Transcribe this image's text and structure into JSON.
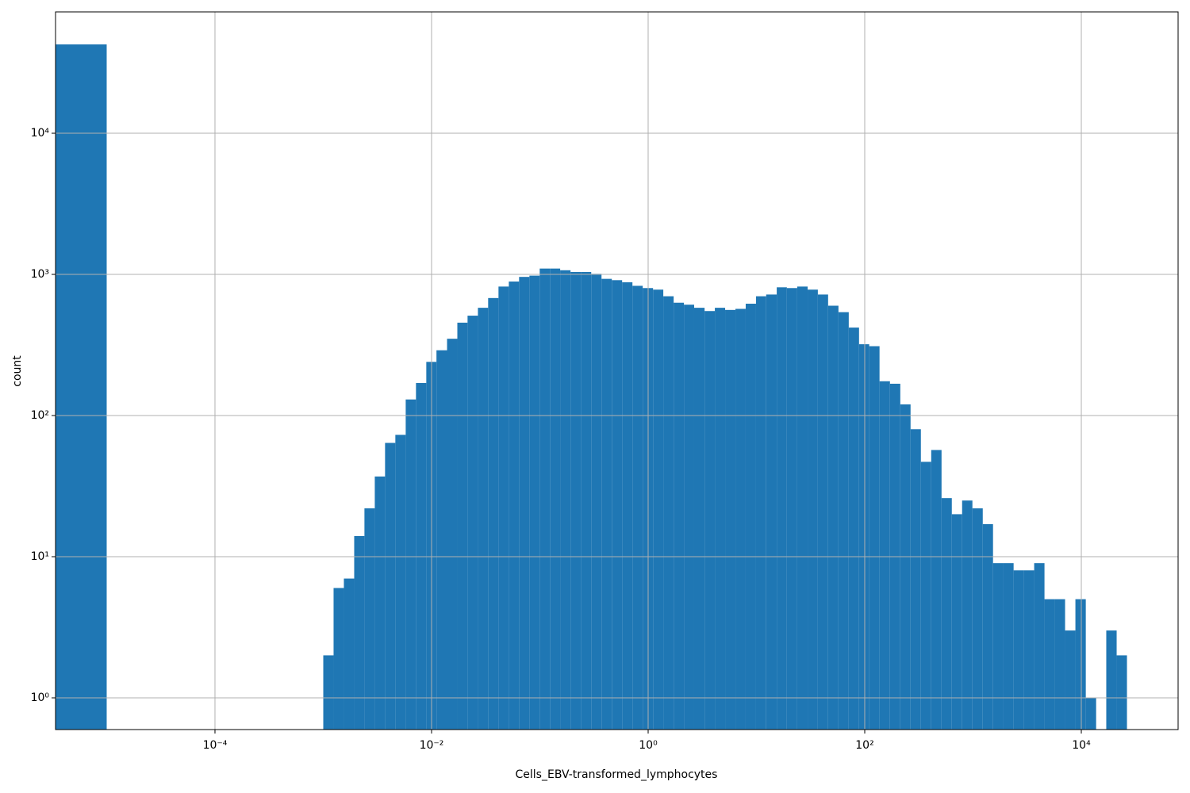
{
  "chart_data": {
    "type": "histogram",
    "xlabel": "Cells_EBV-transformed_lymphocytes",
    "ylabel": "count",
    "color": "#1f77b4",
    "xscale": "log",
    "yscale": "log",
    "grid": true,
    "xlim": [
      3.37e-06,
      78300
    ],
    "ylim": [
      0.596,
      72400
    ],
    "xticks": [
      {
        "value": 0.0001,
        "label": "10⁻⁴"
      },
      {
        "value": 0.01,
        "label": "10⁻²"
      },
      {
        "value": 1,
        "label": "10⁰"
      },
      {
        "value": 100,
        "label": "10²"
      },
      {
        "value": 10000,
        "label": "10⁴"
      }
    ],
    "yticks": [
      {
        "value": 1,
        "label": "10⁰"
      },
      {
        "value": 10,
        "label": "10¹"
      },
      {
        "value": 100,
        "label": "10²"
      },
      {
        "value": 1000,
        "label": "10³"
      },
      {
        "value": 10000,
        "label": "10⁴"
      }
    ],
    "bins": [
      3.35e-06,
      1e-05,
      0.001,
      0.001245,
      0.00155,
      0.00193,
      0.0024,
      0.00299,
      0.00372,
      0.00463,
      0.00577,
      0.00718,
      0.00894,
      0.0111,
      0.0139,
      0.0173,
      0.0215,
      0.0268,
      0.0333,
      0.0415,
      0.0517,
      0.0643,
      0.0801,
      0.0997,
      0.124,
      0.154,
      0.192,
      0.239,
      0.298,
      0.371,
      0.462,
      0.575,
      0.716,
      0.891,
      1.11,
      1.38,
      1.72,
      2.14,
      2.66,
      3.32,
      4.13,
      5.14,
      6.4,
      7.96,
      9.91,
      12.3,
      15.4,
      19.1,
      23.8,
      29.7,
      36.9,
      45.9,
      57.2,
      71.2,
      88.6,
      110,
      137,
      171,
      213,
      265,
      330,
      411,
      512,
      637,
      793,
      987,
      1230,
      1530,
      1900,
      2370,
      2950,
      3670,
      4570,
      5690,
      7080,
      8820,
      11000,
      13700,
      17000,
      21200,
      26400
    ],
    "values": [
      42600,
      0,
      2,
      6,
      7,
      14,
      22,
      37,
      64,
      73,
      130,
      170,
      240,
      290,
      350,
      455,
      510,
      580,
      680,
      820,
      890,
      960,
      980,
      1100,
      1100,
      1070,
      1040,
      1040,
      1010,
      930,
      910,
      880,
      830,
      800,
      780,
      700,
      630,
      610,
      580,
      550,
      580,
      560,
      570,
      620,
      700,
      720,
      810,
      800,
      820,
      780,
      720,
      600,
      540,
      420,
      320,
      310,
      175,
      168,
      120,
      80,
      47,
      57,
      26,
      20,
      25,
      22,
      17,
      9,
      9,
      8,
      8,
      9,
      5,
      5,
      3,
      5,
      1,
      0,
      3,
      2
    ]
  }
}
